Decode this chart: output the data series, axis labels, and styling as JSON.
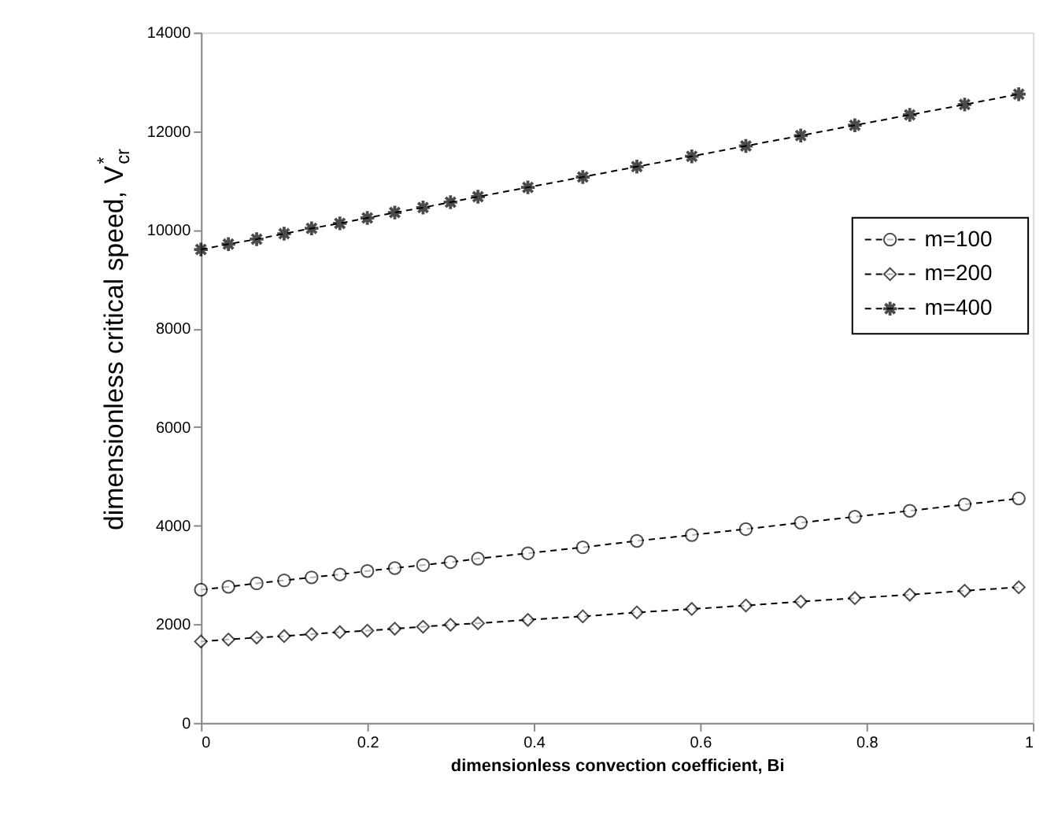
{
  "chart_data": {
    "type": "line",
    "xlabel": "dimensionless convection coefficient, Bi",
    "ylabel": "dimensionless critical speed, V$^{*}$$_{cr}$",
    "x": [
      0,
      0.033,
      0.067,
      0.1,
      0.133,
      0.167,
      0.2,
      0.233,
      0.267,
      0.3,
      0.333,
      0.393,
      0.459,
      0.524,
      0.59,
      0.655,
      0.721,
      0.786,
      0.852,
      0.918,
      0.983
    ],
    "series": [
      {
        "name": "m=100",
        "color": "#000000",
        "marker": "circle",
        "values": [
          2700,
          2760,
          2830,
          2890,
          2950,
          3010,
          3080,
          3140,
          3200,
          3260,
          3330,
          3440,
          3560,
          3690,
          3810,
          3930,
          4060,
          4180,
          4300,
          4430,
          4550
        ]
      },
      {
        "name": "m=200",
        "color": "#000000",
        "marker": "diamond",
        "values": [
          1650,
          1690,
          1730,
          1760,
          1800,
          1840,
          1870,
          1910,
          1950,
          1990,
          2020,
          2090,
          2160,
          2240,
          2310,
          2380,
          2460,
          2530,
          2600,
          2680,
          2750
        ]
      },
      {
        "name": "m=400",
        "color": "#000000",
        "marker": "star",
        "values": [
          9600,
          9710,
          9810,
          9920,
          10030,
          10130,
          10240,
          10350,
          10450,
          10560,
          10670,
          10860,
          11070,
          11280,
          11490,
          11700,
          11910,
          12120,
          12330,
          12540,
          12750
        ]
      }
    ],
    "xlim": [
      0,
      1
    ],
    "xticks": [
      0,
      0.2,
      0.4,
      0.6,
      0.8,
      1
    ],
    "ylim": [
      0,
      14000
    ],
    "yticks": [
      0,
      2000,
      4000,
      6000,
      8000,
      10000,
      12000,
      14000
    ],
    "grid": false,
    "legend": "right",
    "line_style": "dashed"
  }
}
